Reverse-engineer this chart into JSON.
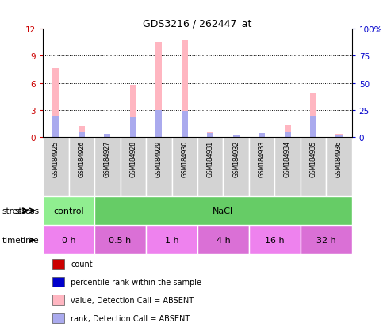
{
  "title": "GDS3216 / 262447_at",
  "samples": [
    "GSM184925",
    "GSM184926",
    "GSM184927",
    "GSM184928",
    "GSM184929",
    "GSM184930",
    "GSM184931",
    "GSM184932",
    "GSM184933",
    "GSM184934",
    "GSM184935",
    "GSM184936"
  ],
  "pink_bars": [
    7.6,
    1.2,
    0.3,
    5.8,
    10.5,
    10.7,
    0.55,
    0.25,
    0.45,
    1.3,
    4.8,
    0.3
  ],
  "blue_bars": [
    2.35,
    0.55,
    0.35,
    2.2,
    3.0,
    2.85,
    0.45,
    0.25,
    0.4,
    0.5,
    2.25,
    0.25
  ],
  "ylim_left": [
    0,
    12
  ],
  "ylim_right": [
    0,
    100
  ],
  "yticks_left": [
    0,
    3,
    6,
    9,
    12
  ],
  "yticks_right": [
    0,
    25,
    50,
    75,
    100
  ],
  "stress_groups": [
    {
      "label": "control",
      "start": 0,
      "end": 2,
      "color": "#90EE90"
    },
    {
      "label": "NaCl",
      "start": 2,
      "end": 12,
      "color": "#66CC66"
    }
  ],
  "time_groups": [
    {
      "label": "0 h",
      "start": 0,
      "end": 2,
      "color": "#EE82EE"
    },
    {
      "label": "0.5 h",
      "start": 2,
      "end": 4,
      "color": "#DA70D6"
    },
    {
      "label": "1 h",
      "start": 4,
      "end": 6,
      "color": "#EE82EE"
    },
    {
      "label": "4 h",
      "start": 6,
      "end": 8,
      "color": "#DA70D6"
    },
    {
      "label": "16 h",
      "start": 8,
      "end": 10,
      "color": "#EE82EE"
    },
    {
      "label": "32 h",
      "start": 10,
      "end": 12,
      "color": "#DA70D6"
    }
  ],
  "legend_items": [
    {
      "color": "#cc0000",
      "label": "count"
    },
    {
      "color": "#0000cc",
      "label": "percentile rank within the sample"
    },
    {
      "color": "#FFB6C1",
      "label": "value, Detection Call = ABSENT"
    },
    {
      "color": "#AAAAEE",
      "label": "rank, Detection Call = ABSENT"
    }
  ],
  "bar_width": 0.25,
  "pink_color": "#FFB6C1",
  "blue_color": "#AAAAEE",
  "bg_color": "#FFFFFF",
  "tick_color_left": "#CC0000",
  "tick_color_right": "#0000CC",
  "sample_box_color": "#D3D3D3"
}
